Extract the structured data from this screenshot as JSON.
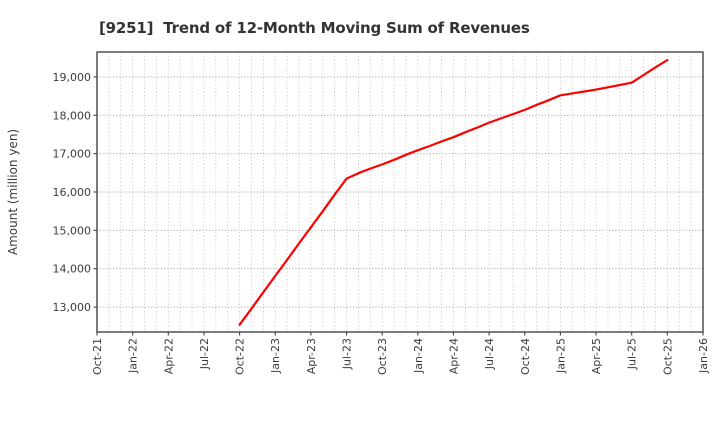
{
  "page": {
    "background": "#ffffff"
  },
  "chart_data": {
    "type": "line",
    "title": "[9251]  Trend of 12-Month Moving Sum of Revenues",
    "ylabel": "Amount (million yen)",
    "xlabel": "",
    "grid": true,
    "legend": "none",
    "x_axis": {
      "start_month": "Oct-21",
      "end_month": "Jan-26",
      "minor_gridline_interval_months": 1,
      "major_tick_interval_months": 3
    },
    "x_tick_labels": [
      "Oct-21",
      "Jan-22",
      "Apr-22",
      "Jul-22",
      "Oct-22",
      "Jan-23",
      "Apr-23",
      "Jul-23",
      "Oct-23",
      "Jan-24",
      "Apr-24",
      "Jul-24",
      "Oct-24",
      "Jan-25",
      "Apr-25",
      "Jul-25",
      "Oct-25",
      "Jan-26"
    ],
    "y_ticks": [
      {
        "label": "13,000",
        "value": 13000
      },
      {
        "label": "14,000",
        "value": 14000
      },
      {
        "label": "15,000",
        "value": 15000
      },
      {
        "label": "16,000",
        "value": 16000
      },
      {
        "label": "17,000",
        "value": 17000
      },
      {
        "label": "18,000",
        "value": 18000
      },
      {
        "label": "19,000",
        "value": 19000
      }
    ],
    "ylim": [
      12350,
      19650
    ],
    "colors": {
      "line": "#ff0000",
      "major_grid": "#909090",
      "minor_grid": "#b5b5b5",
      "axis_border": "#444444",
      "text": "#3c3c3c"
    },
    "series": [
      {
        "name": "Revenues (12-month moving sum, million yen)",
        "color": "#ff0000",
        "points": [
          [
            "Oct-22",
            12540
          ],
          [
            "Nov-22",
            12960
          ],
          [
            "Dec-22",
            13390
          ],
          [
            "Jan-23",
            13810
          ],
          [
            "Feb-23",
            14230
          ],
          [
            "Mar-23",
            14660
          ],
          [
            "Apr-23",
            15080
          ],
          [
            "May-23",
            15500
          ],
          [
            "Jun-23",
            15930
          ],
          [
            "Jul-23",
            16350
          ],
          [
            "Aug-23",
            16490
          ],
          [
            "Sep-23",
            16610
          ],
          [
            "Oct-23",
            16720
          ],
          [
            "Nov-23",
            16840
          ],
          [
            "Dec-23",
            16970
          ],
          [
            "Jan-24",
            17090
          ],
          [
            "Feb-24",
            17200
          ],
          [
            "Mar-24",
            17320
          ],
          [
            "Apr-24",
            17430
          ],
          [
            "May-24",
            17560
          ],
          [
            "Jun-24",
            17680
          ],
          [
            "Jul-24",
            17810
          ],
          [
            "Aug-24",
            17920
          ],
          [
            "Sep-24",
            18030
          ],
          [
            "Oct-24",
            18140
          ],
          [
            "Nov-24",
            18270
          ],
          [
            "Dec-24",
            18390
          ],
          [
            "Jan-25",
            18520
          ],
          [
            "Feb-25",
            18570
          ],
          [
            "Mar-25",
            18620
          ],
          [
            "Apr-25",
            18670
          ],
          [
            "May-25",
            18730
          ],
          [
            "Jun-25",
            18790
          ],
          [
            "Jul-25",
            18850
          ],
          [
            "Aug-25",
            19050
          ],
          [
            "Sep-25",
            19250
          ],
          [
            "Oct-25",
            19440
          ]
        ]
      }
    ]
  }
}
